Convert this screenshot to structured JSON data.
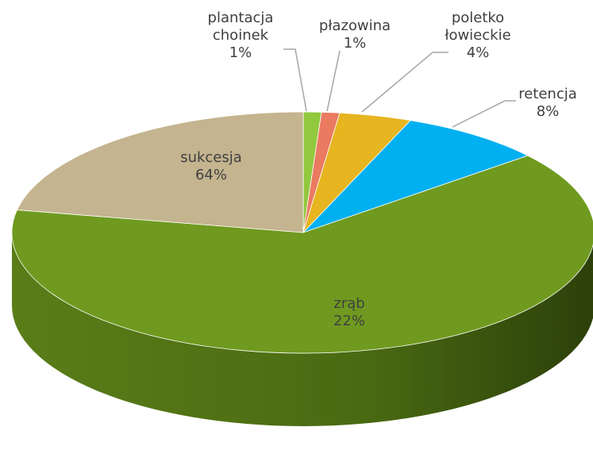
{
  "chart_data": {
    "type": "pie",
    "categories": [
      "plantacja choinek",
      "płazowina",
      "poletko łowieckie",
      "retencja",
      "sukcesja",
      "zrąb"
    ],
    "values": [
      1,
      1,
      4,
      8,
      64,
      22
    ],
    "value_labels": [
      "1%",
      "1%",
      "4%",
      "8%",
      "64%",
      "22%"
    ],
    "colors": [
      "#92c83e",
      "#ea7a60",
      "#e6b520",
      "#00b0f0",
      "#6f9a1f",
      "#c4b48f"
    ]
  }
}
